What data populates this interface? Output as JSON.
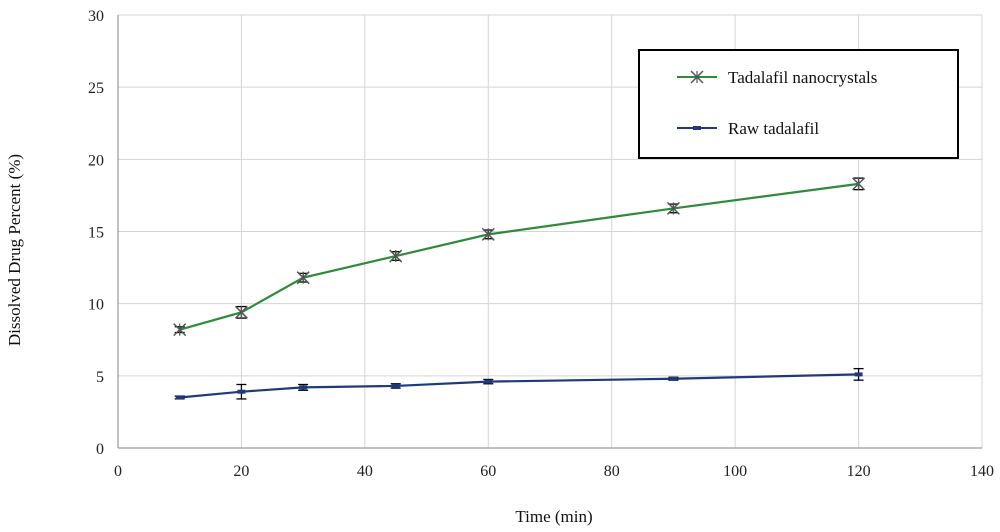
{
  "chart_data": {
    "type": "line",
    "xlabel": "Time (min)",
    "ylabel": "Dissolved Drug Percent (%)",
    "xlim": [
      0,
      140
    ],
    "ylim": [
      0,
      30
    ],
    "xticks": [
      0,
      20,
      40,
      60,
      80,
      100,
      120,
      140
    ],
    "yticks": [
      0,
      5,
      10,
      15,
      20,
      25,
      30
    ],
    "grid": true,
    "legend_position": "top-right",
    "series": [
      {
        "name": "Tadalafil nanocrystals",
        "color": "#2e8b3a",
        "marker": "x-star",
        "x": [
          10,
          20,
          30,
          45,
          60,
          90,
          120
        ],
        "y": [
          8.2,
          9.4,
          11.8,
          13.3,
          14.8,
          16.6,
          18.3
        ],
        "error": [
          0.2,
          0.4,
          0.3,
          0.3,
          0.3,
          0.3,
          0.4
        ]
      },
      {
        "name": "Raw tadalafil",
        "color": "#1f3a7a",
        "marker": "dash",
        "x": [
          10,
          20,
          30,
          45,
          60,
          90,
          120
        ],
        "y": [
          3.5,
          3.9,
          4.2,
          4.3,
          4.6,
          4.8,
          5.1
        ],
        "error": [
          0.1,
          0.5,
          0.2,
          0.15,
          0.15,
          0.1,
          0.4
        ]
      }
    ]
  }
}
